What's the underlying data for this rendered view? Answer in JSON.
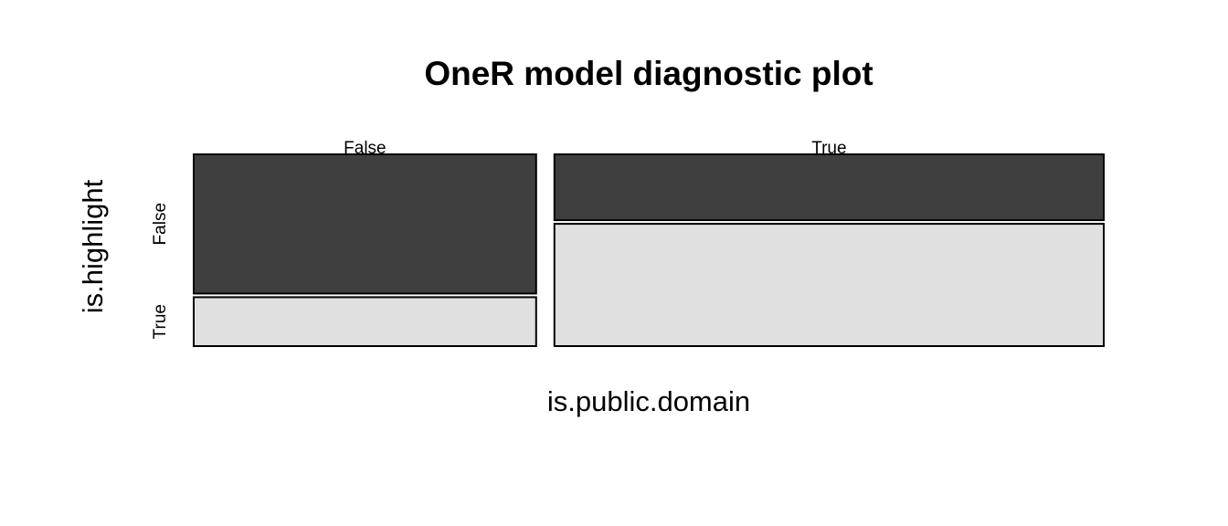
{
  "chart_data": {
    "type": "mosaic",
    "title": "OneR model diagnostic plot",
    "xlabel": "is.public.domain",
    "ylabel": "is.highlight",
    "x_categories": [
      "False",
      "True"
    ],
    "y_categories": [
      "False",
      "True"
    ],
    "column_proportions": [
      0.384,
      0.616
    ],
    "cells": [
      {
        "x": "False",
        "y": "False",
        "share_within_column": 0.74,
        "color": "#3f3f3f"
      },
      {
        "x": "False",
        "y": "True",
        "share_within_column": 0.26,
        "color": "#e0e0e0"
      },
      {
        "x": "True",
        "y": "False",
        "share_within_column": 0.35,
        "color": "#3f3f3f"
      },
      {
        "x": "True",
        "y": "True",
        "share_within_column": 0.65,
        "color": "#e0e0e0"
      }
    ],
    "colors": {
      "dark": "#3f3f3f",
      "light": "#e0e0e0",
      "border": "#000000"
    }
  }
}
